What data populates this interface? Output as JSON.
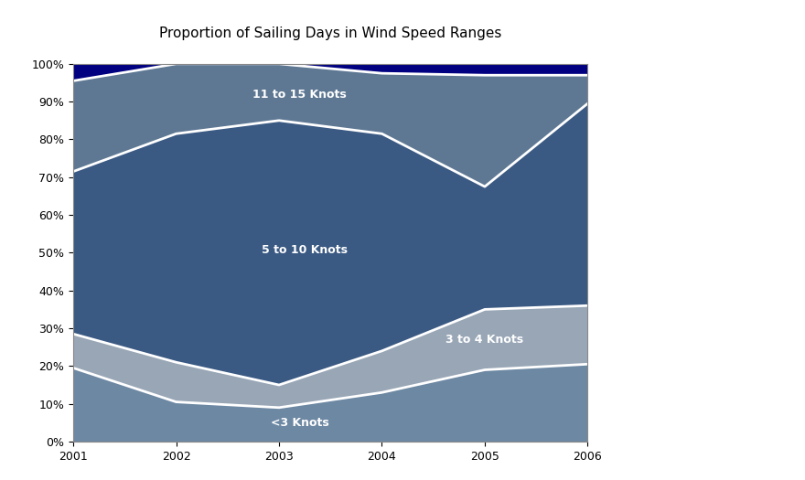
{
  "chart_data": {
    "type": "area",
    "title": "Proportion of Sailing Days in Wind Speed Ranges",
    "stacked": true,
    "grid": false,
    "x": [
      2001,
      2002,
      2003,
      2004,
      2005,
      2006
    ],
    "xlim": [
      2001,
      2006
    ],
    "xticks": [
      2001,
      2002,
      2003,
      2004,
      2005,
      2006
    ],
    "ylim": [
      0,
      100
    ],
    "yticks": [
      {
        "value": 0,
        "label": "0%"
      },
      {
        "value": 10,
        "label": "10%"
      },
      {
        "value": 20,
        "label": "20%"
      },
      {
        "value": 30,
        "label": "30%"
      },
      {
        "value": 40,
        "label": "40%"
      },
      {
        "value": 50,
        "label": "50%"
      },
      {
        "value": 60,
        "label": "60%"
      },
      {
        "value": 70,
        "label": "70%"
      },
      {
        "value": 80,
        "label": "80%"
      },
      {
        "value": 90,
        "label": "90%"
      },
      {
        "value": 100,
        "label": "100%"
      }
    ],
    "series": [
      {
        "name": "<3 Knots",
        "color": "#6d88a3",
        "values": [
          19.5,
          10.5,
          9,
          13,
          19,
          20.5
        ]
      },
      {
        "name": "3 to 4 Knots",
        "color": "#98a6b6",
        "values": [
          9,
          10.5,
          6,
          11,
          16,
          15.5
        ]
      },
      {
        "name": "5 to 10 Knots",
        "color": "#3a5983",
        "values": [
          43,
          60.5,
          70,
          57.5,
          32.5,
          53.5
        ]
      },
      {
        "name": "11 to 15 Knots",
        "color": "#5e7894",
        "values": [
          24,
          18.5,
          15,
          16,
          29.5,
          7.5
        ]
      },
      {
        "color": "#000080",
        "values": [
          4.5,
          0,
          0,
          2.5,
          3,
          3
        ]
      }
    ]
  }
}
